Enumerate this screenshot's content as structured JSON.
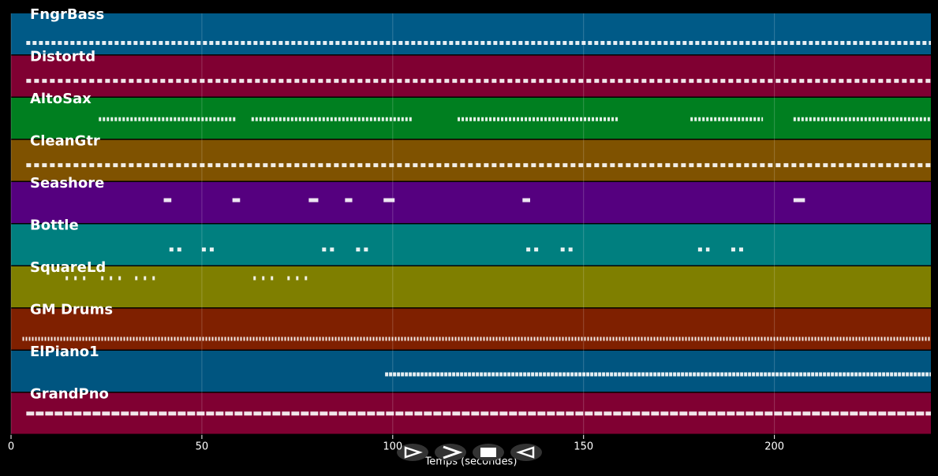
{
  "chart_data": {
    "type": "pianoroll",
    "xlabel": "Temps (secondes)",
    "xlim": [
      0,
      241
    ],
    "xticks": [
      0,
      50,
      100,
      150,
      200
    ],
    "grid": true,
    "series": [
      {
        "name": "FngrBass",
        "color": "#005a87",
        "notes": [
          [
            4,
            241
          ]
        ]
      },
      {
        "name": "Distortd",
        "color": "#800032",
        "notes": [
          [
            4,
            241
          ]
        ]
      },
      {
        "name": "AltoSax",
        "color": "#007f20",
        "notes": [
          [
            23,
            59
          ],
          [
            63,
            105
          ],
          [
            117,
            159
          ],
          [
            178,
            197
          ],
          [
            205,
            241
          ]
        ]
      },
      {
        "name": "CleanGtr",
        "color": "#7f5200",
        "notes": [
          [
            4,
            241
          ]
        ]
      },
      {
        "name": "Seashore",
        "color": "#55007f",
        "notes": [
          [
            40,
            42
          ],
          [
            58,
            60
          ],
          [
            78,
            80.5
          ],
          [
            87.5,
            89.4
          ],
          [
            97.6,
            100.5
          ],
          [
            134,
            136
          ],
          [
            205,
            208
          ]
        ]
      },
      {
        "name": "Bottle",
        "color": "#007f7f",
        "notes": [
          [
            41.5,
            45
          ],
          [
            50,
            53.6
          ],
          [
            81.5,
            85
          ],
          [
            90.4,
            93.7
          ],
          [
            135,
            138.4
          ],
          [
            144,
            147.3
          ],
          [
            180,
            183
          ],
          [
            188.7,
            192
          ]
        ]
      },
      {
        "name": "SquareLd",
        "color": "#7f7f00",
        "notes": [
          [
            14.3,
            19.6
          ],
          [
            23.6,
            29
          ],
          [
            32.5,
            37.9
          ],
          [
            63.5,
            69
          ],
          [
            72.4,
            77.8
          ]
        ]
      },
      {
        "name": "GM Drums",
        "color": "#7f2000",
        "notes": [
          [
            3,
            241
          ]
        ]
      },
      {
        "name": "ElPiano1",
        "color": "#005580",
        "notes": [
          [
            98,
            241
          ]
        ]
      },
      {
        "name": "GrandPno",
        "color": "#800032",
        "notes": [
          [
            4,
            241
          ]
        ]
      }
    ]
  }
}
